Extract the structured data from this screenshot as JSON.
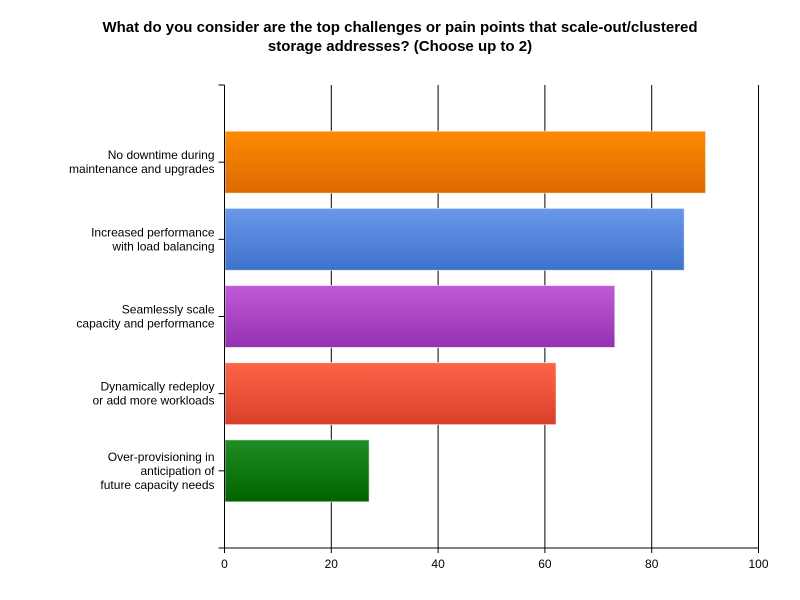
{
  "chart_data": {
    "type": "bar",
    "orientation": "horizontal",
    "title": "What do you consider are the top challenges or pain points that scale-out/clustered storage addresses? (Choose up to 2)",
    "title_lines": [
      "What do you consider are the top challenges or pain points that scale-out/clustered",
      "storage addresses? (Choose up to 2)"
    ],
    "categories": [
      [
        "No downtime during",
        "maintenance and upgrades"
      ],
      [
        "Increased performance",
        "with load balancing"
      ],
      [
        "Seamlessly scale",
        "capacity and performance"
      ],
      [
        "Dynamically redeploy",
        "or add more workloads"
      ],
      [
        "Over-provisioning in",
        "anticipation of",
        "future capacity needs"
      ]
    ],
    "values": [
      90,
      86,
      73,
      62,
      27
    ],
    "colors": [
      [
        "#ff8a00",
        "#dc6a00"
      ],
      [
        "#6a98ea",
        "#3d72cc"
      ],
      [
        "#c05ad8",
        "#9530b0"
      ],
      [
        "#ff6448",
        "#d8402a"
      ],
      [
        "#1f8c24",
        "#006400"
      ]
    ],
    "xlim": [
      0,
      100
    ],
    "xticks": [
      0,
      20,
      40,
      60,
      80,
      100
    ],
    "grid": true,
    "xlabel": "",
    "ylabel": ""
  }
}
